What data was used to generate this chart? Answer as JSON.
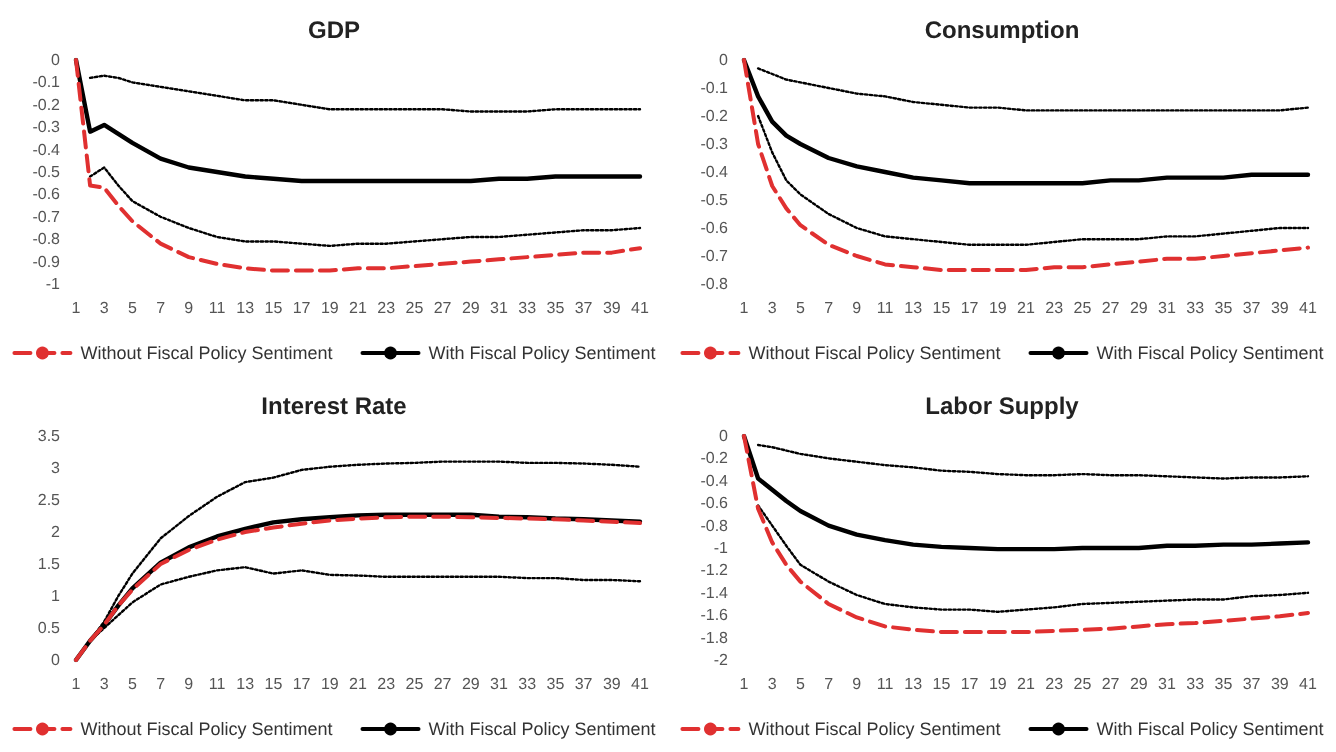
{
  "chart_data": [
    {
      "type": "line",
      "title": "GDP",
      "x": [
        1,
        2,
        3,
        4,
        5,
        7,
        9,
        11,
        13,
        15,
        17,
        19,
        21,
        23,
        25,
        27,
        29,
        31,
        33,
        35,
        37,
        39,
        41
      ],
      "xlim": [
        1,
        41
      ],
      "xticks": [
        1,
        3,
        5,
        7,
        9,
        11,
        13,
        15,
        17,
        19,
        21,
        23,
        25,
        27,
        29,
        31,
        33,
        35,
        37,
        39,
        41
      ],
      "ylim": [
        -1,
        0
      ],
      "yticks": [
        -1,
        -0.9,
        -0.8,
        -0.7,
        -0.6,
        -0.5,
        -0.4,
        -0.3,
        -0.2,
        -0.1,
        0
      ],
      "legend": "bottom",
      "series": [
        {
          "name": "Without Fiscal Policy Sentiment",
          "color": "#e03030",
          "line_style": "dashed",
          "values": [
            0,
            -0.56,
            -0.57,
            -0.65,
            -0.72,
            -0.82,
            -0.88,
            -0.91,
            -0.93,
            -0.94,
            -0.94,
            -0.94,
            -0.93,
            -0.93,
            -0.92,
            -0.91,
            -0.9,
            -0.89,
            -0.88,
            -0.87,
            -0.86,
            -0.86,
            -0.84
          ]
        },
        {
          "name": "With Fiscal Policy Sentiment",
          "color": "#000000",
          "line_style": "solid",
          "values": [
            0,
            -0.32,
            -0.29,
            -0.33,
            -0.37,
            -0.44,
            -0.48,
            -0.5,
            -0.52,
            -0.53,
            -0.54,
            -0.54,
            -0.54,
            -0.54,
            -0.54,
            -0.54,
            -0.54,
            -0.53,
            -0.53,
            -0.52,
            -0.52,
            -0.52,
            -0.52
          ]
        },
        {
          "color": "#000000",
          "line_style": "dotted",
          "values": [
            null,
            -0.08,
            -0.07,
            -0.08,
            -0.1,
            -0.12,
            -0.14,
            -0.16,
            -0.18,
            -0.18,
            -0.2,
            -0.22,
            -0.22,
            -0.22,
            -0.22,
            -0.22,
            -0.23,
            -0.23,
            -0.23,
            -0.22,
            -0.22,
            -0.22,
            -0.22
          ]
        },
        {
          "color": "#000000",
          "line_style": "dotted",
          "values": [
            null,
            -0.52,
            -0.48,
            -0.56,
            -0.63,
            -0.7,
            -0.75,
            -0.79,
            -0.81,
            -0.81,
            -0.82,
            -0.83,
            -0.82,
            -0.82,
            -0.81,
            -0.8,
            -0.79,
            -0.79,
            -0.78,
            -0.77,
            -0.76,
            -0.76,
            -0.75
          ]
        }
      ]
    },
    {
      "type": "line",
      "title": "Consumption",
      "x": [
        1,
        2,
        3,
        4,
        5,
        7,
        9,
        11,
        13,
        15,
        17,
        19,
        21,
        23,
        25,
        27,
        29,
        31,
        33,
        35,
        37,
        39,
        41
      ],
      "xlim": [
        1,
        41
      ],
      "xticks": [
        1,
        3,
        5,
        7,
        9,
        11,
        13,
        15,
        17,
        19,
        21,
        23,
        25,
        27,
        29,
        31,
        33,
        35,
        37,
        39,
        41
      ],
      "ylim": [
        -0.8,
        0
      ],
      "yticks": [
        -0.8,
        -0.7,
        -0.6,
        -0.5,
        -0.4,
        -0.3,
        -0.2,
        -0.1,
        0
      ],
      "legend": "bottom",
      "series": [
        {
          "name": "Without Fiscal Policy Sentiment",
          "color": "#e03030",
          "line_style": "dashed",
          "values": [
            0,
            -0.3,
            -0.45,
            -0.53,
            -0.59,
            -0.66,
            -0.7,
            -0.73,
            -0.74,
            -0.75,
            -0.75,
            -0.75,
            -0.75,
            -0.74,
            -0.74,
            -0.73,
            -0.72,
            -0.71,
            -0.71,
            -0.7,
            -0.69,
            -0.68,
            -0.67
          ]
        },
        {
          "name": "With Fiscal Policy Sentiment",
          "color": "#000000",
          "line_style": "solid",
          "values": [
            0,
            -0.13,
            -0.22,
            -0.27,
            -0.3,
            -0.35,
            -0.38,
            -0.4,
            -0.42,
            -0.43,
            -0.44,
            -0.44,
            -0.44,
            -0.44,
            -0.44,
            -0.43,
            -0.43,
            -0.42,
            -0.42,
            -0.42,
            -0.41,
            -0.41,
            -0.41
          ]
        },
        {
          "color": "#000000",
          "line_style": "dotted",
          "values": [
            null,
            -0.03,
            -0.05,
            -0.07,
            -0.08,
            -0.1,
            -0.12,
            -0.13,
            -0.15,
            -0.16,
            -0.17,
            -0.17,
            -0.18,
            -0.18,
            -0.18,
            -0.18,
            -0.18,
            -0.18,
            -0.18,
            -0.18,
            -0.18,
            -0.18,
            -0.17
          ]
        },
        {
          "color": "#000000",
          "line_style": "dotted",
          "values": [
            null,
            -0.2,
            -0.33,
            -0.43,
            -0.48,
            -0.55,
            -0.6,
            -0.63,
            -0.64,
            -0.65,
            -0.66,
            -0.66,
            -0.66,
            -0.65,
            -0.64,
            -0.64,
            -0.64,
            -0.63,
            -0.63,
            -0.62,
            -0.61,
            -0.6,
            -0.6
          ]
        }
      ]
    },
    {
      "type": "line",
      "title": "Interest Rate",
      "x": [
        1,
        2,
        3,
        4,
        5,
        7,
        9,
        11,
        13,
        15,
        17,
        19,
        21,
        23,
        25,
        27,
        29,
        31,
        33,
        35,
        37,
        39,
        41
      ],
      "xlim": [
        1,
        41
      ],
      "xticks": [
        1,
        3,
        5,
        7,
        9,
        11,
        13,
        15,
        17,
        19,
        21,
        23,
        25,
        27,
        29,
        31,
        33,
        35,
        37,
        39,
        41
      ],
      "ylim": [
        0,
        3.5
      ],
      "yticks": [
        0,
        0.5,
        1,
        1.5,
        2,
        2.5,
        3,
        3.5
      ],
      "legend": "bottom",
      "series": [
        {
          "name": "Without Fiscal Policy Sentiment",
          "color": "#e03030",
          "line_style": "dashed",
          "values": [
            0,
            0.3,
            0.55,
            0.85,
            1.1,
            1.5,
            1.72,
            1.88,
            2.0,
            2.07,
            2.13,
            2.18,
            2.21,
            2.23,
            2.24,
            2.24,
            2.23,
            2.22,
            2.21,
            2.2,
            2.18,
            2.16,
            2.14
          ]
        },
        {
          "name": "With Fiscal Policy Sentiment",
          "color": "#000000",
          "line_style": "solid",
          "values": [
            0,
            0.3,
            0.55,
            0.85,
            1.12,
            1.52,
            1.76,
            1.93,
            2.05,
            2.15,
            2.2,
            2.23,
            2.26,
            2.27,
            2.27,
            2.27,
            2.27,
            2.24,
            2.23,
            2.21,
            2.2,
            2.18,
            2.16
          ]
        },
        {
          "color": "#000000",
          "line_style": "dotted",
          "values": [
            null,
            0.3,
            0.6,
            1.0,
            1.35,
            1.9,
            2.25,
            2.55,
            2.78,
            2.85,
            2.97,
            3.02,
            3.05,
            3.07,
            3.08,
            3.1,
            3.1,
            3.1,
            3.08,
            3.08,
            3.07,
            3.05,
            3.02
          ]
        },
        {
          "color": "#000000",
          "line_style": "dotted",
          "values": [
            null,
            0.3,
            0.5,
            0.7,
            0.9,
            1.18,
            1.3,
            1.4,
            1.45,
            1.35,
            1.4,
            1.33,
            1.32,
            1.3,
            1.3,
            1.3,
            1.3,
            1.3,
            1.28,
            1.28,
            1.25,
            1.25,
            1.23
          ]
        }
      ]
    },
    {
      "type": "line",
      "title": "Labor Supply",
      "x": [
        1,
        2,
        3,
        4,
        5,
        7,
        9,
        11,
        13,
        15,
        17,
        19,
        21,
        23,
        25,
        27,
        29,
        31,
        33,
        35,
        37,
        39,
        41
      ],
      "xlim": [
        1,
        41
      ],
      "xticks": [
        1,
        3,
        5,
        7,
        9,
        11,
        13,
        15,
        17,
        19,
        21,
        23,
        25,
        27,
        29,
        31,
        33,
        35,
        37,
        39,
        41
      ],
      "ylim": [
        -2,
        0
      ],
      "yticks": [
        -2,
        -1.8,
        -1.6,
        -1.4,
        -1.2,
        -1,
        -0.8,
        -0.6,
        -0.4,
        -0.2,
        0
      ],
      "legend": "bottom",
      "series": [
        {
          "name": "Without Fiscal Policy Sentiment",
          "color": "#e03030",
          "line_style": "dashed",
          "values": [
            0,
            -0.65,
            -0.95,
            -1.15,
            -1.3,
            -1.5,
            -1.62,
            -1.7,
            -1.73,
            -1.75,
            -1.75,
            -1.75,
            -1.75,
            -1.74,
            -1.73,
            -1.72,
            -1.7,
            -1.68,
            -1.67,
            -1.65,
            -1.63,
            -1.61,
            -1.58
          ]
        },
        {
          "name": "With Fiscal Policy Sentiment",
          "color": "#000000",
          "line_style": "solid",
          "values": [
            0,
            -0.38,
            -0.48,
            -0.58,
            -0.67,
            -0.8,
            -0.88,
            -0.93,
            -0.97,
            -0.99,
            -1.0,
            -1.01,
            -1.01,
            -1.01,
            -1.0,
            -1.0,
            -1.0,
            -0.98,
            -0.98,
            -0.97,
            -0.97,
            -0.96,
            -0.95
          ]
        },
        {
          "color": "#000000",
          "line_style": "dotted",
          "values": [
            null,
            -0.08,
            -0.1,
            -0.13,
            -0.16,
            -0.2,
            -0.23,
            -0.26,
            -0.28,
            -0.31,
            -0.32,
            -0.34,
            -0.35,
            -0.35,
            -0.34,
            -0.35,
            -0.35,
            -0.36,
            -0.37,
            -0.38,
            -0.37,
            -0.37,
            -0.36
          ]
        },
        {
          "color": "#000000",
          "line_style": "dotted",
          "values": [
            null,
            -0.62,
            -0.8,
            -0.98,
            -1.15,
            -1.3,
            -1.42,
            -1.5,
            -1.53,
            -1.55,
            -1.55,
            -1.57,
            -1.55,
            -1.53,
            -1.5,
            -1.49,
            -1.48,
            -1.47,
            -1.46,
            -1.46,
            -1.43,
            -1.42,
            -1.4
          ]
        }
      ]
    }
  ]
}
